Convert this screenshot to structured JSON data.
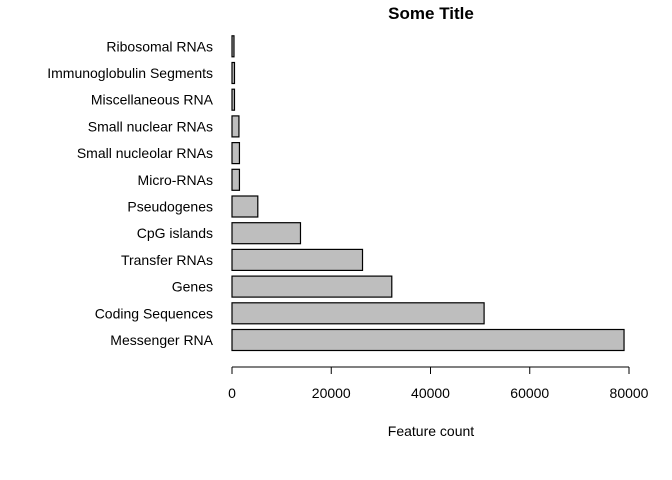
{
  "chart_data": {
    "type": "bar",
    "orientation": "horizontal",
    "title": "Some Title",
    "xlabel": "Feature count",
    "ylabel": "",
    "xlim": [
      0,
      80000
    ],
    "x_ticks": [
      0,
      20000,
      40000,
      60000,
      80000
    ],
    "bar_color": "#bebebe",
    "grid": false,
    "categories": [
      "Messenger RNA",
      "Coding Sequences",
      "Genes",
      "Transfer RNAs",
      "CpG islands",
      "Pseudogenes",
      "Micro-RNAs",
      "Small nucleolar RNAs",
      "Small nuclear RNAs",
      "Miscellaneous RNA",
      "Immunoglobulin Segments",
      "Ribosomal RNAs"
    ],
    "values": [
      79000,
      50800,
      32200,
      26300,
      13800,
      5200,
      1500,
      1500,
      1400,
      500,
      500,
      400
    ]
  }
}
